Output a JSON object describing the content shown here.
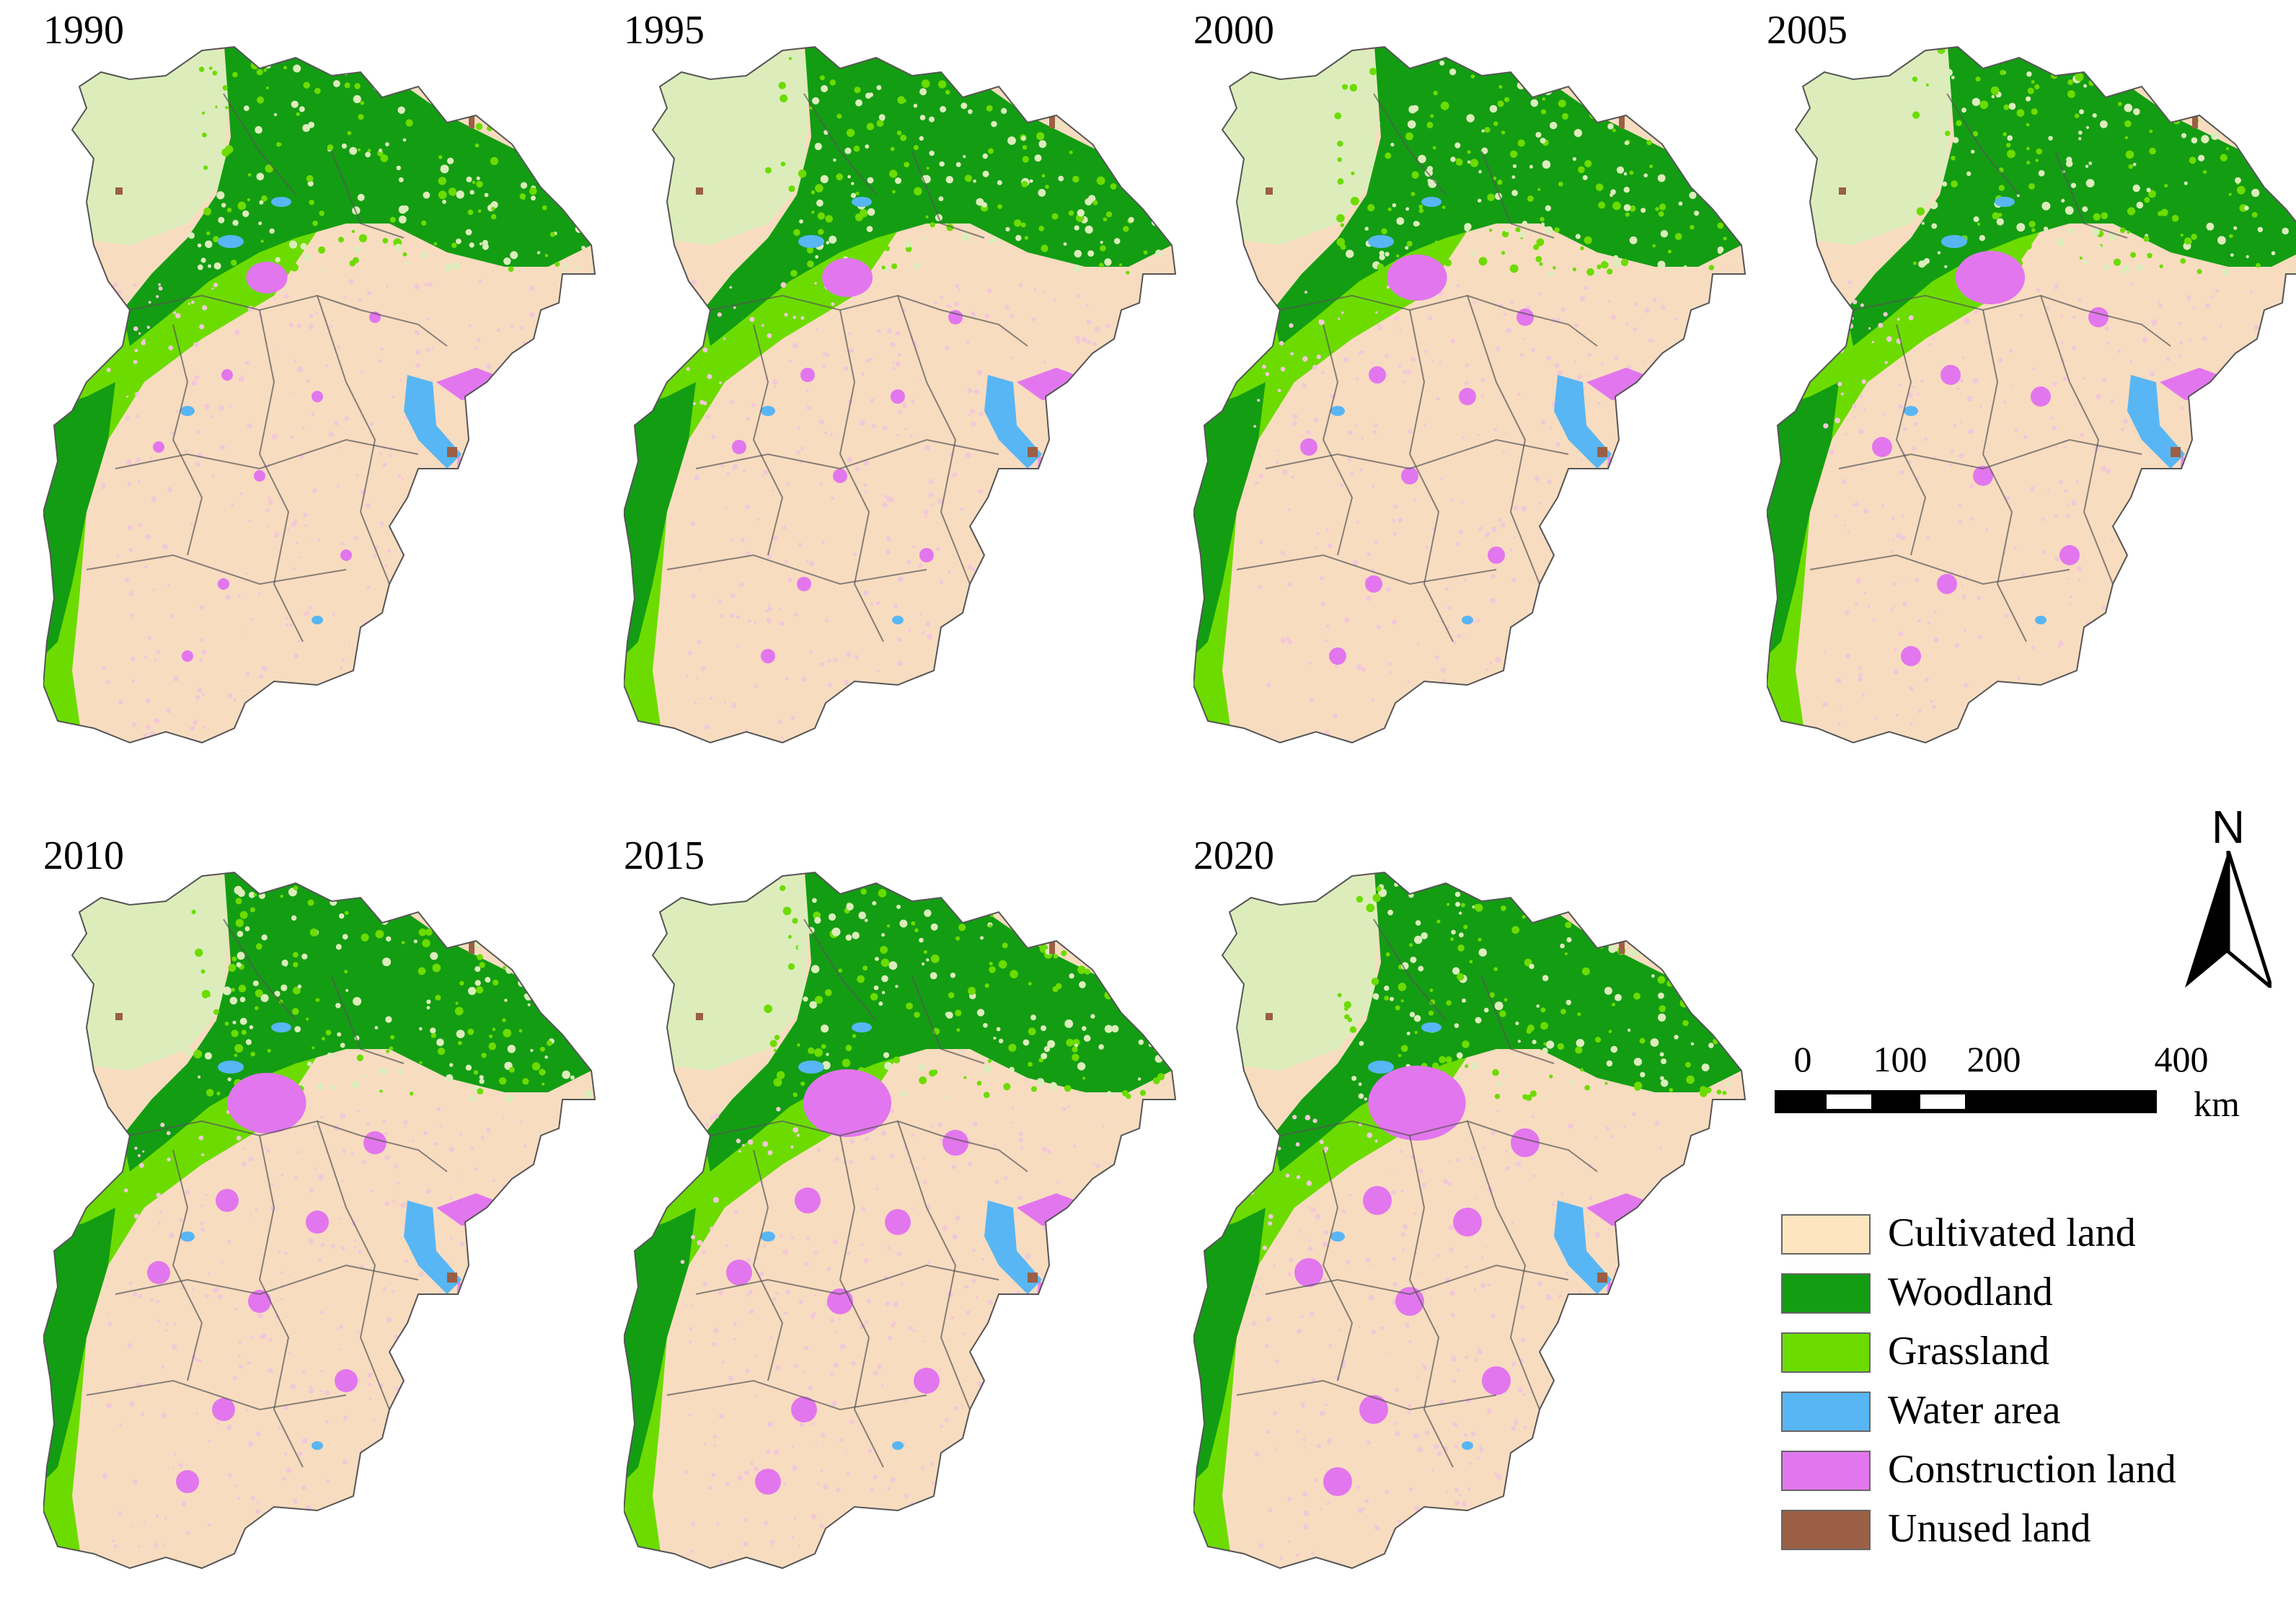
{
  "panels": [
    {
      "year": "1990",
      "stage": 0
    },
    {
      "year": "1995",
      "stage": 1
    },
    {
      "year": "2000",
      "stage": 2
    },
    {
      "year": "2005",
      "stage": 3
    },
    {
      "year": "2010",
      "stage": 4
    },
    {
      "year": "2015",
      "stage": 5
    },
    {
      "year": "2020",
      "stage": 6
    }
  ],
  "north_arrow": {
    "label": "N"
  },
  "scale_bar": {
    "ticks": [
      "0",
      "100",
      "200",
      "400"
    ],
    "unit": "km"
  },
  "legend": {
    "items": [
      {
        "label": "Cultivated land",
        "color": "#fde6bf",
        "icon": "cultivated-land-swatch"
      },
      {
        "label": "Woodland",
        "color": "#139d13",
        "icon": "woodland-swatch"
      },
      {
        "label": "Grassland",
        "color": "#6cdc00",
        "icon": "grassland-swatch"
      },
      {
        "label": "Water area",
        "color": "#58b6f4",
        "icon": "water-area-swatch"
      },
      {
        "label": "Construction land",
        "color": "#e276ee",
        "icon": "construction-land-swatch"
      },
      {
        "label": "Unused land",
        "color": "#9b5f45",
        "icon": "unused-land-swatch"
      }
    ]
  },
  "colors": {
    "cultivated": "#f8dcc0",
    "woodland": "#139d13",
    "grassland": "#6cdc00",
    "grass_light": "#dcedbb",
    "water": "#58b6f4",
    "construction": "#e276ee",
    "unused": "#9b5f45",
    "boundary": "#555555"
  }
}
